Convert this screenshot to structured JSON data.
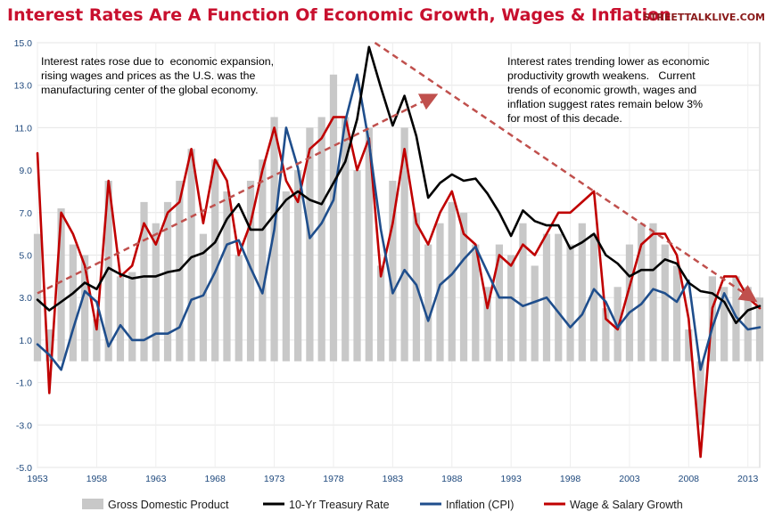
{
  "header": {
    "title": "Interest Rates Are A Function Of Economic Growth, Wages & Inflation",
    "brand": "STREETTALKLIVE.COM"
  },
  "colors": {
    "gdp": "#c8c8c8",
    "treasury": "#000000",
    "cpi": "#1f4e8c",
    "wages": "#c00000",
    "trend_arrow": "#c0504d",
    "title": "#c8102e",
    "axis_text": "#1f497d"
  },
  "chart_data": {
    "type": "line",
    "ylim": [
      -5.0,
      15.0
    ],
    "y_ticks": [
      "15.0",
      "13.0",
      "11.0",
      "9.0",
      "7.0",
      "5.0",
      "3.0",
      "1.0",
      "-1.0",
      "-3.0",
      "-5.0"
    ],
    "x_range": [
      1953,
      2014
    ],
    "x_ticks": [
      "1953",
      "1958",
      "1963",
      "1968",
      "1973",
      "1978",
      "1983",
      "1988",
      "1993",
      "1998",
      "2003",
      "2008",
      "2013"
    ],
    "grid": true,
    "legend_position": "bottom",
    "annotations": [
      "Interest rates rose due to  economic expansion,\nrising wages and prices as the U.S. was the\nmanufacturing center of the global economy.",
      "Interest rates trending lower as economic\nproductivity growth weakens.   Current\ntrends of economic growth, wages and\ninflation suggest rates remain below 3%\nfor most of this decade."
    ],
    "series": [
      {
        "name": "Gross Domestic Product",
        "type": "bar",
        "x": [
          1953,
          1954,
          1955,
          1956,
          1957,
          1958,
          1959,
          1960,
          1961,
          1962,
          1963,
          1964,
          1965,
          1966,
          1967,
          1968,
          1969,
          1970,
          1971,
          1972,
          1973,
          1974,
          1975,
          1976,
          1977,
          1978,
          1979,
          1980,
          1981,
          1982,
          1983,
          1984,
          1985,
          1986,
          1987,
          1988,
          1989,
          1990,
          1991,
          1992,
          1993,
          1994,
          1995,
          1996,
          1997,
          1998,
          1999,
          2000,
          2001,
          2002,
          2003,
          2004,
          2005,
          2006,
          2007,
          2008,
          2009,
          2010,
          2011,
          2012,
          2013,
          2014
        ],
        "values": [
          6.0,
          1.5,
          7.2,
          5.5,
          5.0,
          2.0,
          8.5,
          4.0,
          4.2,
          7.5,
          6.5,
          7.5,
          8.5,
          10.0,
          6.0,
          9.5,
          8.0,
          5.0,
          8.5,
          9.5,
          11.5,
          8.0,
          9.0,
          11.0,
          11.5,
          13.5,
          11.5,
          9.0,
          11.0,
          4.5,
          8.5,
          11.0,
          7.0,
          5.5,
          6.5,
          7.5,
          7.0,
          5.5,
          3.5,
          5.5,
          5.0,
          6.5,
          4.5,
          6.0,
          6.0,
          5.5,
          6.5,
          6.0,
          2.5,
          3.5,
          5.5,
          6.5,
          6.5,
          5.5,
          4.5,
          1.5,
          -3.0,
          4.0,
          3.5,
          4.0,
          3.5,
          3.0
        ]
      },
      {
        "name": "10-Yr Treasury Rate",
        "x": [
          1953,
          1954,
          1955,
          1956,
          1957,
          1958,
          1959,
          1960,
          1961,
          1962,
          1963,
          1964,
          1965,
          1966,
          1967,
          1968,
          1969,
          1970,
          1971,
          1972,
          1973,
          1974,
          1975,
          1976,
          1977,
          1978,
          1979,
          1980,
          1981,
          1982,
          1983,
          1984,
          1985,
          1986,
          1987,
          1988,
          1989,
          1990,
          1991,
          1992,
          1993,
          1994,
          1995,
          1996,
          1997,
          1998,
          1999,
          2000,
          2001,
          2002,
          2003,
          2004,
          2005,
          2006,
          2007,
          2008,
          2009,
          2010,
          2011,
          2012,
          2013,
          2014
        ],
        "values": [
          2.9,
          2.4,
          2.8,
          3.2,
          3.7,
          3.4,
          4.4,
          4.1,
          3.9,
          4.0,
          4.0,
          4.2,
          4.3,
          4.9,
          5.1,
          5.6,
          6.7,
          7.4,
          6.2,
          6.2,
          6.9,
          7.6,
          8.0,
          7.6,
          7.4,
          8.4,
          9.4,
          11.4,
          14.8,
          12.9,
          11.1,
          12.5,
          10.6,
          7.7,
          8.4,
          8.8,
          8.5,
          8.6,
          7.9,
          7.0,
          5.9,
          7.1,
          6.6,
          6.4,
          6.4,
          5.3,
          5.6,
          6.0,
          5.0,
          4.6,
          4.0,
          4.3,
          4.3,
          4.8,
          4.6,
          3.7,
          3.3,
          3.2,
          2.8,
          1.8,
          2.4,
          2.6
        ]
      },
      {
        "name": "Inflation (CPI)",
        "x": [
          1953,
          1954,
          1955,
          1956,
          1957,
          1958,
          1959,
          1960,
          1961,
          1962,
          1963,
          1964,
          1965,
          1966,
          1967,
          1968,
          1969,
          1970,
          1971,
          1972,
          1973,
          1974,
          1975,
          1976,
          1977,
          1978,
          1979,
          1980,
          1981,
          1982,
          1983,
          1984,
          1985,
          1986,
          1987,
          1988,
          1989,
          1990,
          1991,
          1992,
          1993,
          1994,
          1995,
          1996,
          1997,
          1998,
          1999,
          2000,
          2001,
          2002,
          2003,
          2004,
          2005,
          2006,
          2007,
          2008,
          2009,
          2010,
          2011,
          2012,
          2013,
          2014
        ],
        "values": [
          0.8,
          0.3,
          -0.4,
          1.5,
          3.3,
          2.8,
          0.7,
          1.7,
          1.0,
          1.0,
          1.3,
          1.3,
          1.6,
          2.9,
          3.1,
          4.2,
          5.5,
          5.7,
          4.4,
          3.2,
          6.2,
          11.0,
          9.1,
          5.8,
          6.5,
          7.6,
          11.3,
          13.5,
          10.3,
          6.2,
          3.2,
          4.3,
          3.6,
          1.9,
          3.6,
          4.1,
          4.8,
          5.4,
          4.2,
          3.0,
          3.0,
          2.6,
          2.8,
          3.0,
          2.3,
          1.6,
          2.2,
          3.4,
          2.8,
          1.6,
          2.3,
          2.7,
          3.4,
          3.2,
          2.8,
          3.8,
          -0.4,
          1.6,
          3.2,
          2.1,
          1.5,
          1.6
        ]
      },
      {
        "name": "Wage & Salary Growth",
        "x": [
          1953,
          1954,
          1955,
          1956,
          1957,
          1958,
          1959,
          1960,
          1961,
          1962,
          1963,
          1964,
          1965,
          1966,
          1967,
          1968,
          1969,
          1970,
          1971,
          1972,
          1973,
          1974,
          1975,
          1976,
          1977,
          1978,
          1979,
          1980,
          1981,
          1982,
          1983,
          1984,
          1985,
          1986,
          1987,
          1988,
          1989,
          1990,
          1991,
          1992,
          1993,
          1994,
          1995,
          1996,
          1997,
          1998,
          1999,
          2000,
          2001,
          2002,
          2003,
          2004,
          2005,
          2006,
          2007,
          2008,
          2009,
          2010,
          2011,
          2012,
          2013,
          2014
        ],
        "values": [
          9.8,
          -1.5,
          7.0,
          6.0,
          4.5,
          1.5,
          8.5,
          4.0,
          4.5,
          6.5,
          5.5,
          7.0,
          7.5,
          10.0,
          6.5,
          9.5,
          8.5,
          5.0,
          6.5,
          9.0,
          11.0,
          8.5,
          7.5,
          10.0,
          10.5,
          11.5,
          11.5,
          9.0,
          10.5,
          4.0,
          6.5,
          10.0,
          6.5,
          5.5,
          7.0,
          8.0,
          6.0,
          5.5,
          2.5,
          5.0,
          4.5,
          5.5,
          5.0,
          6.0,
          7.0,
          7.0,
          7.5,
          8.0,
          2.0,
          1.5,
          3.5,
          5.5,
          6.0,
          6.0,
          5.0,
          2.0,
          -4.5,
          2.5,
          4.0,
          4.0,
          3.0,
          2.5
        ]
      }
    ]
  }
}
